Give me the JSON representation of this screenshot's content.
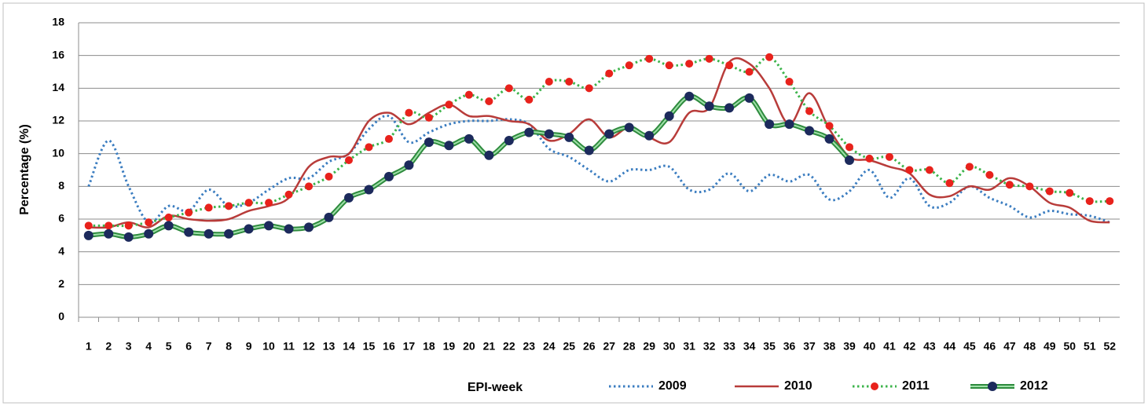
{
  "chart_data": {
    "type": "line",
    "x_label": "EPI-week",
    "y_label": "Percentage (%)",
    "categories": [
      "1",
      "2",
      "3",
      "4",
      "5",
      "6",
      "7",
      "8",
      "9",
      "10",
      "11",
      "12",
      "13",
      "14",
      "15",
      "16",
      "17",
      "18",
      "19",
      "20",
      "21",
      "22",
      "23",
      "24",
      "25",
      "26",
      "27",
      "28",
      "29",
      "30",
      "31",
      "32",
      "33",
      "34",
      "35",
      "36",
      "37",
      "38",
      "39",
      "40",
      "41",
      "42",
      "43",
      "44",
      "45",
      "46",
      "47",
      "48",
      "49",
      "50",
      "51",
      "52"
    ],
    "ylim": [
      0,
      18
    ],
    "yticks": [
      0,
      2,
      4,
      6,
      8,
      10,
      12,
      14,
      16,
      18
    ],
    "grid": true,
    "legend": "bottom",
    "series": [
      {
        "name": "2009",
        "color": "#3b7dc0",
        "style": "dotted",
        "values": [
          8.0,
          10.8,
          8.0,
          5.8,
          6.8,
          6.5,
          7.8,
          6.8,
          7.0,
          7.8,
          8.5,
          8.5,
          9.5,
          10.0,
          11.5,
          12.3,
          10.7,
          11.3,
          11.8,
          12.0,
          12.0,
          12.1,
          11.8,
          10.3,
          9.8,
          9.0,
          8.3,
          9.0,
          9.0,
          9.2,
          7.8,
          7.8,
          8.8,
          7.7,
          8.7,
          8.3,
          8.7,
          7.2,
          7.7,
          9.0,
          7.3,
          8.5,
          6.8,
          7.0,
          8.0,
          7.3,
          6.8,
          6.1,
          6.5,
          6.3,
          6.2,
          5.8
        ]
      },
      {
        "name": "2010",
        "color": "#b83c3a",
        "style": "solid",
        "values": [
          5.5,
          5.5,
          5.8,
          5.5,
          6.2,
          6.0,
          5.9,
          6.0,
          6.5,
          6.8,
          7.3,
          9.2,
          9.8,
          10.0,
          12.0,
          12.5,
          11.8,
          12.5,
          13.0,
          12.3,
          12.3,
          12.0,
          11.8,
          10.8,
          11.2,
          12.1,
          11.0,
          11.6,
          11.0,
          10.7,
          12.5,
          12.8,
          15.6,
          15.5,
          14.0,
          11.8,
          13.7,
          11.5,
          9.8,
          9.6,
          9.2,
          8.8,
          7.5,
          7.4,
          8.0,
          7.8,
          8.5,
          8.0,
          7.0,
          6.7,
          5.9,
          5.8
        ]
      },
      {
        "name": "2011",
        "color": "#3cb44b",
        "style": "dotted",
        "marker_color": "#e8221c",
        "values": [
          5.6,
          5.6,
          5.6,
          5.8,
          6.1,
          6.4,
          6.7,
          6.8,
          7.0,
          7.0,
          7.5,
          8.0,
          8.6,
          9.6,
          10.4,
          10.9,
          12.5,
          12.2,
          13.0,
          13.6,
          13.2,
          14.0,
          13.3,
          14.4,
          14.4,
          14.0,
          14.9,
          15.4,
          15.8,
          15.4,
          15.5,
          15.8,
          15.4,
          15.0,
          15.9,
          14.4,
          12.6,
          11.7,
          10.4,
          9.7,
          9.8,
          9.0,
          9.0,
          8.2,
          9.2,
          8.7,
          8.1,
          8.0,
          7.7,
          7.6,
          7.1,
          7.1
        ]
      },
      {
        "name": "2012",
        "color": "#2e8b3e",
        "style": "double",
        "marker_color": "#1c2a5c",
        "values": [
          5.0,
          5.1,
          4.9,
          5.1,
          5.6,
          5.2,
          5.1,
          5.1,
          5.4,
          5.6,
          5.4,
          5.5,
          6.1,
          7.3,
          7.8,
          8.6,
          9.3,
          10.7,
          10.5,
          10.9,
          9.9,
          10.8,
          11.3,
          11.2,
          11.0,
          10.2,
          11.2,
          11.6,
          11.1,
          12.3,
          13.5,
          12.9,
          12.8,
          13.4,
          11.8,
          11.8,
          11.4,
          10.9,
          9.6,
          null,
          null,
          null,
          null,
          null,
          null,
          null,
          null,
          null,
          null,
          null,
          null,
          null
        ]
      }
    ]
  }
}
